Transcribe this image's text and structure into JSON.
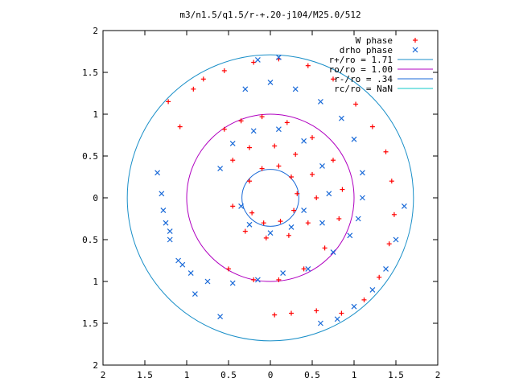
{
  "chart_data": {
    "type": "scatter",
    "title": "m3/n1.5/q1.5/r-+.20-j104/M25.0/512",
    "xlim": [
      -2,
      2
    ],
    "ylim": [
      -2,
      2
    ],
    "x_ticks": [
      -2,
      -1.5,
      -1,
      -0.5,
      0,
      0.5,
      1,
      1.5,
      2
    ],
    "y_ticks": [
      -2,
      -1.5,
      -1,
      -0.5,
      0,
      0.5,
      1,
      1.5,
      2
    ],
    "x_tick_labels": [
      "2",
      "1.5",
      "1",
      "0.5",
      "0",
      "0.5",
      "1",
      "1.5",
      "2"
    ],
    "y_tick_labels": [
      "2",
      "1.5",
      "1",
      "0.5",
      "0",
      "0.5",
      "1",
      "1.5",
      "2"
    ],
    "grid": false,
    "legend_position": "top-right",
    "series": [
      {
        "name": "W phase",
        "marker": "plus",
        "color": "#ff0000",
        "points": [
          [
            -1.22,
            1.15
          ],
          [
            -1.08,
            0.85
          ],
          [
            -0.92,
            1.3
          ],
          [
            -0.8,
            1.42
          ],
          [
            -0.55,
            1.52
          ],
          [
            -0.2,
            1.62
          ],
          [
            0.1,
            1.66
          ],
          [
            0.45,
            1.58
          ],
          [
            0.75,
            1.42
          ],
          [
            1.02,
            1.12
          ],
          [
            1.22,
            0.85
          ],
          [
            1.38,
            0.55
          ],
          [
            1.45,
            0.2
          ],
          [
            1.48,
            -0.2
          ],
          [
            1.42,
            -0.55
          ],
          [
            1.3,
            -0.95
          ],
          [
            1.12,
            -1.22
          ],
          [
            0.85,
            -1.38
          ],
          [
            0.55,
            -1.35
          ],
          [
            0.25,
            -1.38
          ],
          [
            0.05,
            -1.4
          ],
          [
            -0.55,
            0.82
          ],
          [
            -0.35,
            0.92
          ],
          [
            -0.1,
            0.97
          ],
          [
            0.2,
            0.9
          ],
          [
            0.5,
            0.72
          ],
          [
            0.75,
            0.45
          ],
          [
            0.86,
            0.1
          ],
          [
            0.82,
            -0.25
          ],
          [
            0.65,
            -0.6
          ],
          [
            0.4,
            -0.85
          ],
          [
            0.1,
            -0.98
          ],
          [
            -0.2,
            -0.98
          ],
          [
            -0.5,
            -0.85
          ],
          [
            -0.45,
            0.45
          ],
          [
            -0.25,
            0.6
          ],
          [
            0.05,
            0.62
          ],
          [
            0.3,
            0.52
          ],
          [
            0.5,
            0.28
          ],
          [
            0.55,
            0
          ],
          [
            0.45,
            -0.3
          ],
          [
            0.22,
            -0.45
          ],
          [
            -0.05,
            -0.48
          ],
          [
            -0.3,
            -0.4
          ],
          [
            -0.45,
            -0.1
          ],
          [
            -0.25,
            0.2
          ],
          [
            -0.1,
            0.35
          ],
          [
            0.1,
            0.38
          ],
          [
            0.25,
            0.25
          ],
          [
            0.32,
            0.05
          ],
          [
            0.28,
            -0.15
          ],
          [
            0.12,
            -0.28
          ],
          [
            -0.08,
            -0.3
          ],
          [
            -0.22,
            -0.18
          ]
        ]
      },
      {
        "name": "drho phase",
        "marker": "cross",
        "color": "#1a6ad8",
        "points": [
          [
            -1.25,
            -0.3
          ],
          [
            -1.2,
            -0.5
          ],
          [
            -1.1,
            -0.75
          ],
          [
            -0.95,
            -0.9
          ],
          [
            -0.75,
            -1.0
          ],
          [
            -0.45,
            -1.02
          ],
          [
            -0.15,
            -0.98
          ],
          [
            0.15,
            -0.9
          ],
          [
            0.45,
            -0.85
          ],
          [
            0.75,
            -0.65
          ],
          [
            0.95,
            -0.45
          ],
          [
            1.05,
            -0.25
          ],
          [
            1.1,
            0
          ],
          [
            1.1,
            0.3
          ],
          [
            1.6,
            -0.1
          ],
          [
            1.5,
            -0.5
          ],
          [
            1.38,
            -0.85
          ],
          [
            1.22,
            -1.1
          ],
          [
            1.0,
            -1.3
          ],
          [
            0.8,
            -1.45
          ],
          [
            0.6,
            -1.5
          ],
          [
            -0.3,
            1.3
          ],
          [
            0,
            1.38
          ],
          [
            0.3,
            1.3
          ],
          [
            0.6,
            1.15
          ],
          [
            0.85,
            0.95
          ],
          [
            1.0,
            0.7
          ],
          [
            -0.15,
            1.65
          ],
          [
            0.1,
            1.68
          ],
          [
            -1.35,
            0.3
          ],
          [
            -1.3,
            0.05
          ],
          [
            -1.28,
            -0.15
          ],
          [
            -1.2,
            -0.4
          ],
          [
            -1.05,
            -0.8
          ],
          [
            -0.9,
            -1.15
          ],
          [
            -0.6,
            -1.42
          ],
          [
            -0.6,
            0.35
          ],
          [
            -0.45,
            0.65
          ],
          [
            -0.2,
            0.8
          ],
          [
            0.1,
            0.82
          ],
          [
            0.4,
            0.68
          ],
          [
            0.62,
            0.38
          ],
          [
            0.7,
            0.05
          ],
          [
            0.62,
            -0.3
          ],
          [
            -0.35,
            -0.1
          ],
          [
            -0.25,
            -0.32
          ],
          [
            0,
            -0.42
          ],
          [
            0.25,
            -0.35
          ],
          [
            0.4,
            -0.15
          ]
        ]
      }
    ],
    "reference_circles": [
      {
        "name": "r+/ro = 1.71",
        "radius": 1.71,
        "color": "#1a8fc8"
      },
      {
        "name": "ro/ro = 1.00",
        "radius": 1.0,
        "color": "#b000c0"
      },
      {
        "name": "r-/ro = .34",
        "radius": 0.34,
        "color": "#1a6ad8"
      },
      {
        "name": "rc/ro = NaN",
        "radius": null,
        "color": "#10c8c8"
      }
    ]
  }
}
